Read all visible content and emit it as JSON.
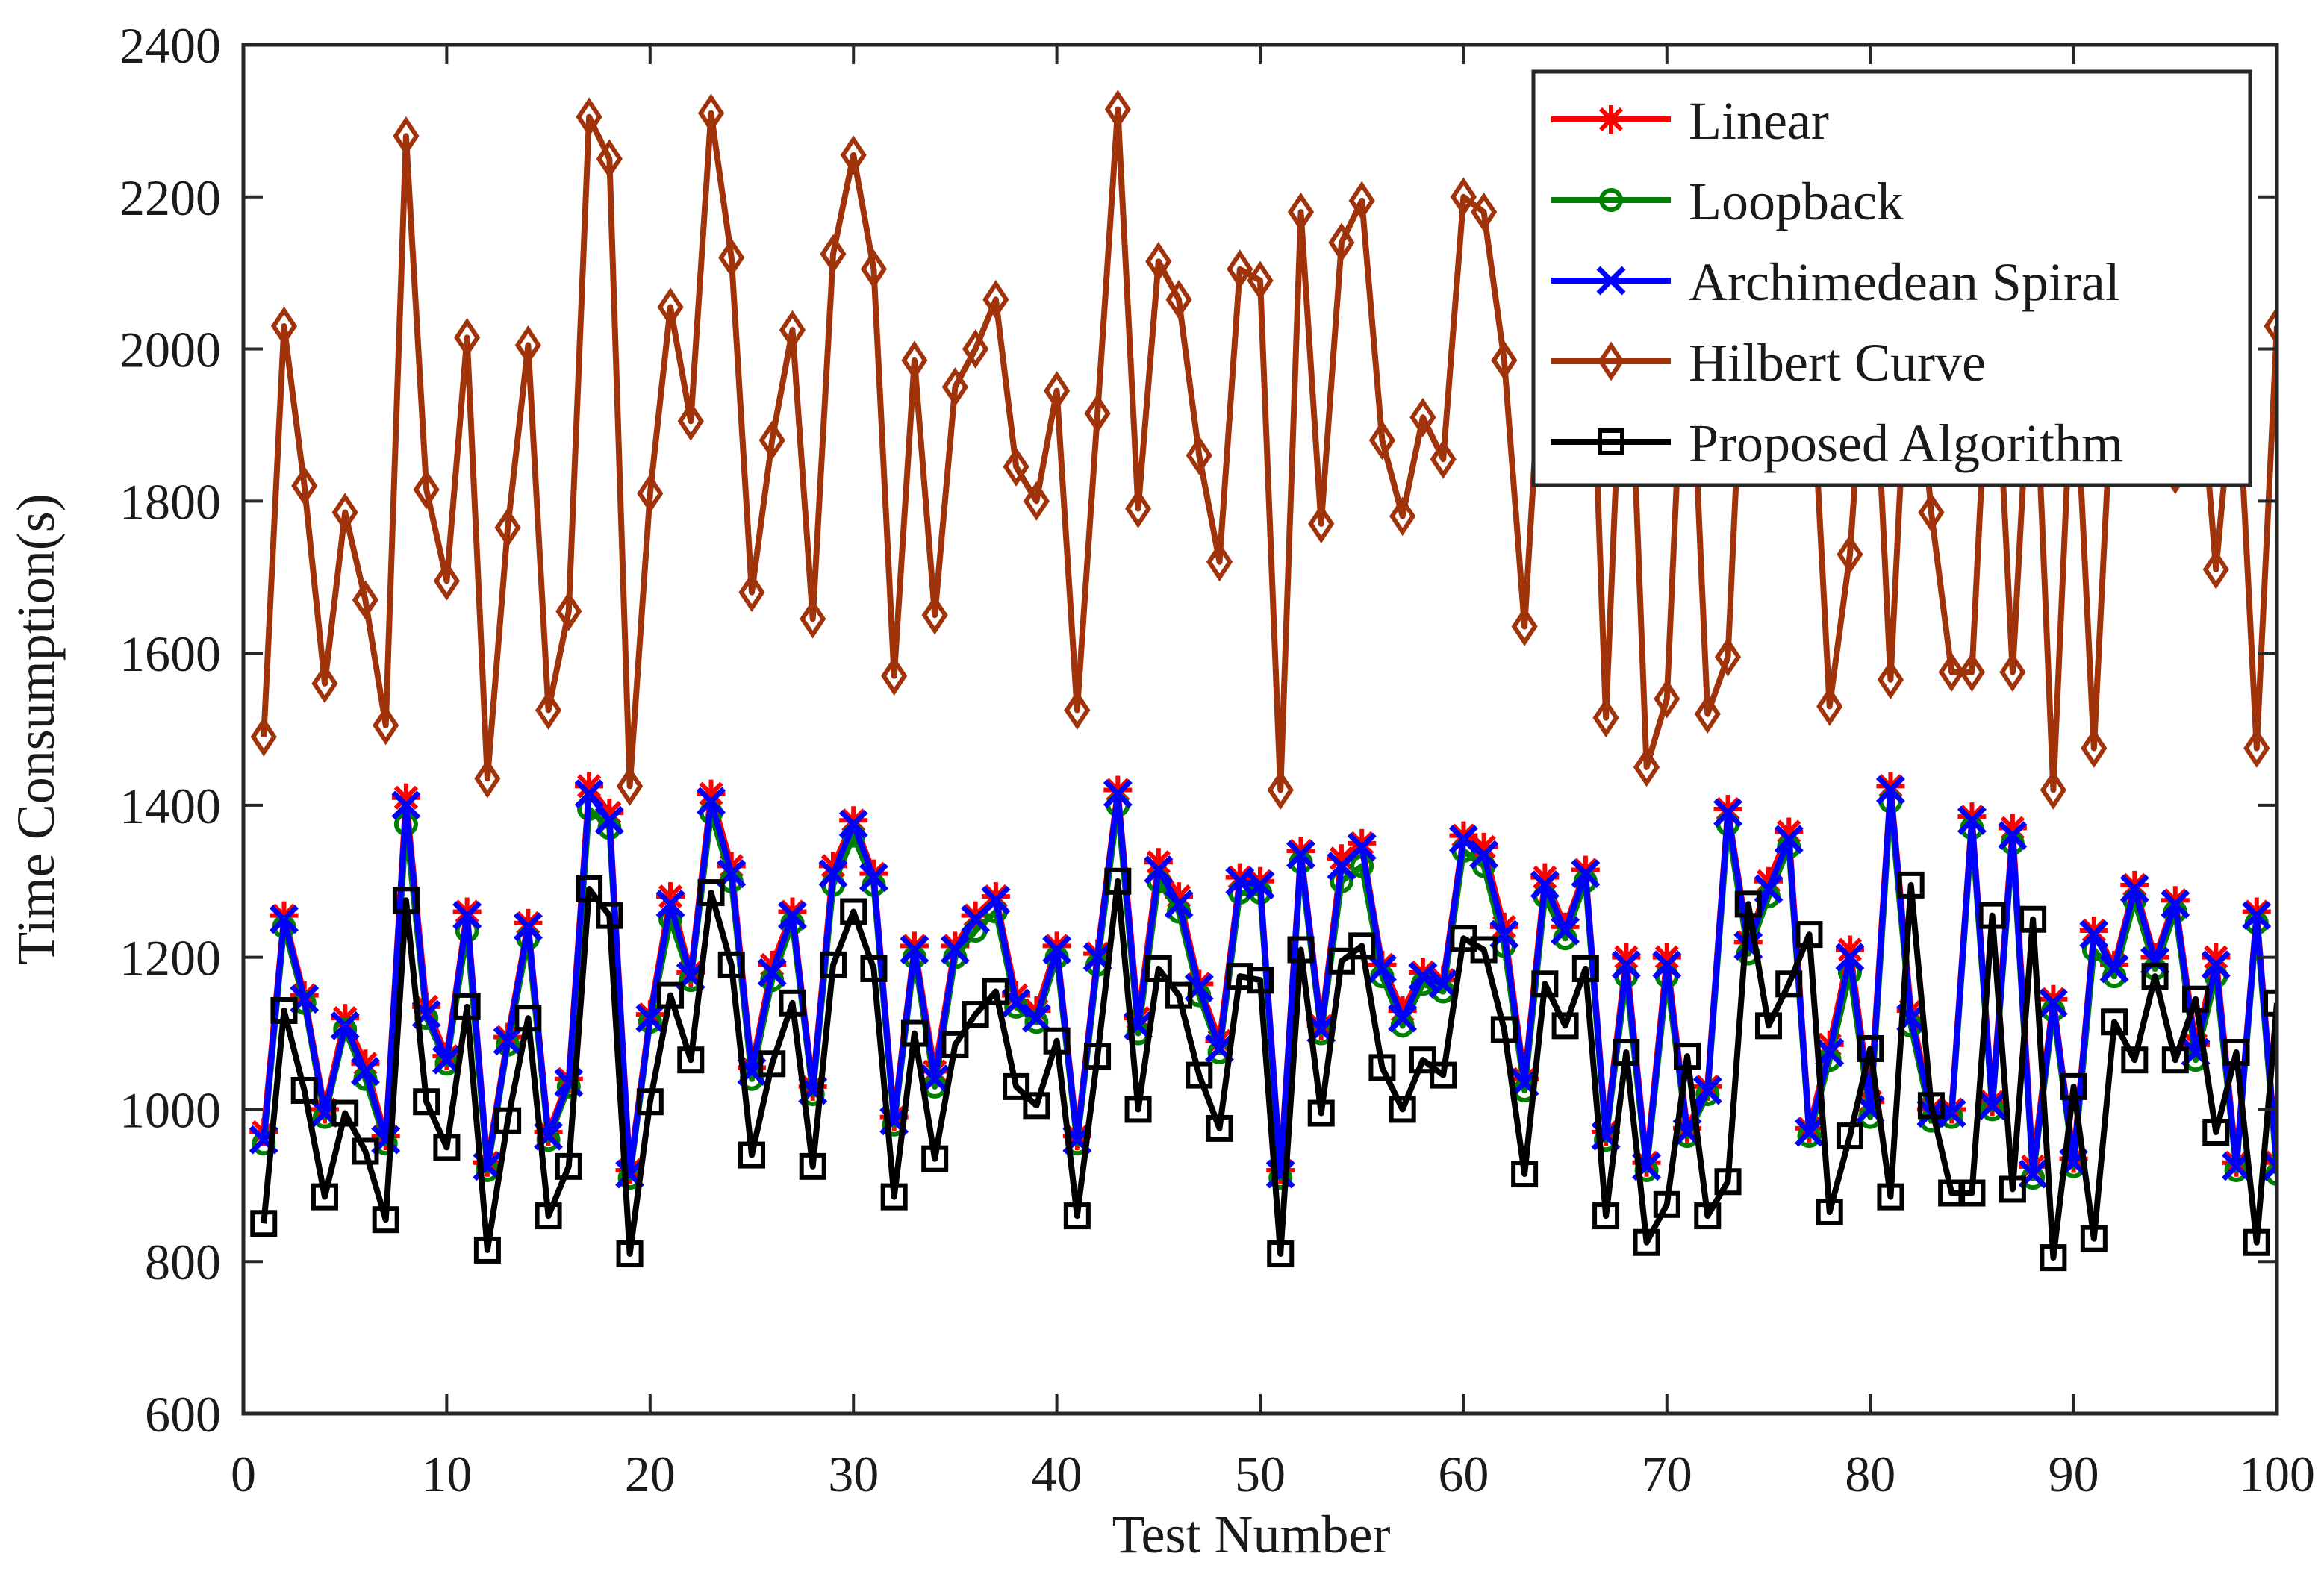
{
  "chart_data": {
    "type": "line",
    "title": "",
    "xlabel": "Test Number",
    "ylabel": "Time Consumption(s)",
    "xlim": [
      0,
      100
    ],
    "ylim": [
      600,
      2400
    ],
    "xticks": [
      0,
      10,
      20,
      30,
      40,
      50,
      60,
      70,
      80,
      90,
      100
    ],
    "yticks": [
      600,
      800,
      1000,
      1200,
      1400,
      1600,
      1800,
      2000,
      2200,
      2400
    ],
    "xtick_labels": [
      "0",
      "10",
      "20",
      "30",
      "40",
      "50",
      "60",
      "70",
      "80",
      "90",
      "100"
    ],
    "ytick_labels": [
      "600",
      "800",
      "1000",
      "1200",
      "1400",
      "1600",
      "1800",
      "2000",
      "2200",
      "2400"
    ],
    "grid": false,
    "legend_position": "top-right",
    "series": [
      {
        "name": "Linear",
        "color": "#ff0000",
        "marker": "asterisk",
        "values": [
          970,
          1255,
          1150,
          1000,
          1120,
          1060,
          965,
          1410,
          1135,
          1070,
          1260,
          930,
          1095,
          1245,
          970,
          1040,
          1425,
          1390,
          920,
          1125,
          1280,
          1180,
          1415,
          1320,
          1055,
          1190,
          1260,
          1030,
          1320,
          1380,
          1310,
          990,
          1215,
          1050,
          1215,
          1255,
          1280,
          1150,
          1130,
          1215,
          965,
          1205,
          1420,
          1120,
          1325,
          1280,
          1165,
          1090,
          1305,
          1300,
          920,
          1340,
          1110,
          1330,
          1350,
          1190,
          1130,
          1180,
          1170,
          1360,
          1345,
          1240,
          1040,
          1305,
          1240,
          1315,
          970,
          1200,
          930,
          1200,
          975,
          1030,
          1395,
          1220,
          1300,
          1365,
          975,
          1085,
          1210,
          1010,
          1425,
          1130,
          1000,
          1000,
          1385,
          1010,
          1370,
          925,
          1145,
          935,
          1235,
          1190,
          1295,
          1200,
          1275,
          1085,
          1200,
          930,
          1260,
          930
        ]
      },
      {
        "name": "Loopback",
        "color": "#008000",
        "marker": "circle",
        "values": [
          955,
          1240,
          1140,
          990,
          1105,
          1040,
          955,
          1375,
          1120,
          1060,
          1235,
          920,
          1085,
          1225,
          960,
          1030,
          1395,
          1370,
          910,
          1115,
          1250,
          1170,
          1390,
          1300,
          1040,
          1170,
          1245,
          1020,
          1295,
          1360,
          1295,
          980,
          1200,
          1030,
          1200,
          1235,
          1260,
          1135,
          1115,
          1200,
          955,
          1190,
          1400,
          1100,
          1300,
          1260,
          1150,
          1075,
          1285,
          1285,
          910,
          1325,
          1100,
          1300,
          1320,
          1175,
          1110,
          1165,
          1155,
          1340,
          1320,
          1215,
          1025,
          1280,
          1225,
          1300,
          960,
          1175,
          920,
          1175,
          965,
          1020,
          1375,
          1205,
          1280,
          1345,
          965,
          1065,
          1180,
          990,
          1405,
          1110,
          985,
          990,
          1370,
          1000,
          1350,
          910,
          1130,
          925,
          1210,
          1175,
          1275,
          1185,
          1260,
          1065,
          1175,
          920,
          1245,
          915
        ]
      },
      {
        "name": "Archimedean Spiral",
        "color": "#0000ff",
        "marker": "cross",
        "values": [
          960,
          1250,
          1145,
          995,
          1110,
          1050,
          960,
          1400,
          1125,
          1065,
          1255,
          925,
          1090,
          1240,
          965,
          1035,
          1415,
          1380,
          915,
          1120,
          1270,
          1175,
          1405,
          1310,
          1050,
          1180,
          1255,
          1025,
          1310,
          1375,
          1305,
          985,
          1210,
          1040,
          1210,
          1250,
          1275,
          1140,
          1120,
          1210,
          960,
          1200,
          1415,
          1110,
          1315,
          1270,
          1160,
          1080,
          1300,
          1295,
          915,
          1335,
          1105,
          1320,
          1345,
          1185,
          1120,
          1175,
          1165,
          1355,
          1335,
          1230,
          1035,
          1295,
          1235,
          1310,
          965,
          1190,
          925,
          1190,
          970,
          1025,
          1390,
          1215,
          1290,
          1355,
          970,
          1075,
          1200,
          1000,
          1420,
          1120,
          995,
          995,
          1380,
          1005,
          1360,
          915,
          1140,
          930,
          1230,
          1185,
          1290,
          1195,
          1270,
          1075,
          1190,
          925,
          1255,
          925
        ]
      },
      {
        "name": "Hilbert Curve",
        "color": "#a0330a",
        "marker": "diamond",
        "values": [
          1490,
          2030,
          1820,
          1560,
          1785,
          1670,
          1505,
          2280,
          1815,
          1695,
          2015,
          1435,
          1765,
          2005,
          1525,
          1655,
          2305,
          2250,
          1425,
          1810,
          2055,
          1905,
          2310,
          2120,
          1680,
          1880,
          2025,
          1645,
          2125,
          2255,
          2105,
          1570,
          1985,
          1650,
          1950,
          2000,
          2065,
          1845,
          1800,
          1945,
          1525,
          1915,
          2315,
          1790,
          2115,
          2065,
          1860,
          1720,
          2105,
          2090,
          1420,
          2180,
          1770,
          2140,
          2195,
          1880,
          1780,
          1910,
          1855,
          2200,
          2180,
          1985,
          1635,
          2080,
          2090,
          2260,
          1515,
          2150,
          1450,
          1540,
          2130,
          1520,
          1595,
          2170,
          2080,
          2170,
          2040,
          1530,
          1730,
          2120,
          1565,
          2100,
          1785,
          1575,
          1575,
          2110,
          1575,
          2060,
          1420,
          2020,
          1475,
          2005,
          2080,
          2060,
          1835,
          2040,
          1710,
          2000,
          1475,
          2030
        ]
      },
      {
        "name": "Proposed Algorithm",
        "color": "#000000",
        "marker": "square",
        "values": [
          850,
          1130,
          1025,
          885,
          995,
          945,
          855,
          1275,
          1010,
          950,
          1135,
          815,
          985,
          1120,
          860,
          925,
          1290,
          1255,
          810,
          1010,
          1150,
          1065,
          1285,
          1190,
          940,
          1060,
          1140,
          925,
          1190,
          1260,
          1185,
          885,
          1100,
          935,
          1085,
          1125,
          1155,
          1030,
          1005,
          1090,
          860,
          1070,
          1300,
          1000,
          1185,
          1150,
          1045,
          975,
          1175,
          1170,
          810,
          1210,
          995,
          1195,
          1215,
          1055,
          1000,
          1065,
          1045,
          1225,
          1210,
          1105,
          915,
          1165,
          1110,
          1185,
          860,
          1075,
          825,
          875,
          1070,
          860,
          905,
          1270,
          1110,
          1165,
          1230,
          865,
          965,
          1080,
          885,
          1295,
          1005,
          890,
          890,
          1255,
          895,
          1250,
          805,
          1030,
          830,
          1115,
          1065,
          1175,
          1065,
          1145,
          970,
          1075,
          825,
          1140
        ]
      }
    ]
  }
}
